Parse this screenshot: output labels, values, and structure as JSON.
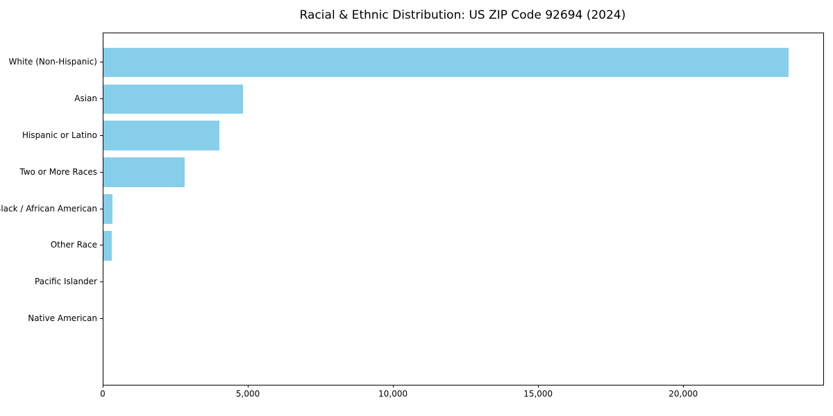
{
  "chart_data": {
    "type": "bar",
    "orientation": "horizontal",
    "title": "Racial & Ethnic Distribution: US ZIP Code 92694 (2024)",
    "categories": [
      "White (Non-Hispanic)",
      "Asian",
      "Hispanic or Latino",
      "Two or More Races",
      "Black / African American",
      "Other Race",
      "Pacific Islander",
      "Native American"
    ],
    "values": [
      23600,
      4800,
      4000,
      2800,
      310,
      290,
      0,
      0
    ],
    "xlabel": "",
    "ylabel": "",
    "xlim": [
      0,
      24800
    ],
    "x_ticks": [
      0,
      5000,
      10000,
      15000,
      20000
    ],
    "x_tick_labels": [
      "0",
      "5,000",
      "10,000",
      "15,000",
      "20,000"
    ],
    "bar_color": "#87CEEB",
    "axis_color": "#000000",
    "background": "#FFFFFF",
    "grid": false,
    "legend": null
  }
}
